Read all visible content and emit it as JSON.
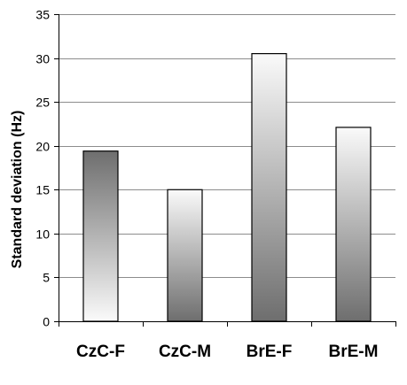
{
  "chart_data": {
    "type": "bar",
    "title": "",
    "xlabel": "",
    "ylabel": "Standard deviation (Hz)",
    "categories": [
      "CzC-F",
      "CzC-M",
      "BrE-F",
      "BrE-M"
    ],
    "values": [
      19.4,
      15.0,
      30.5,
      22.1
    ],
    "ylim": [
      0,
      35
    ],
    "yticks": [
      "0",
      "5",
      "10",
      "15",
      "20",
      "25",
      "30",
      "35"
    ],
    "grid": "horizontal",
    "legend": "none",
    "bar_fill": [
      "dark-top",
      "light-top",
      "dark-bottom",
      "light-top"
    ],
    "colors": {
      "dark": "#6e6e6e",
      "light": "#fafafa",
      "grid": "#8c8c8c",
      "axis": "#000000"
    }
  }
}
